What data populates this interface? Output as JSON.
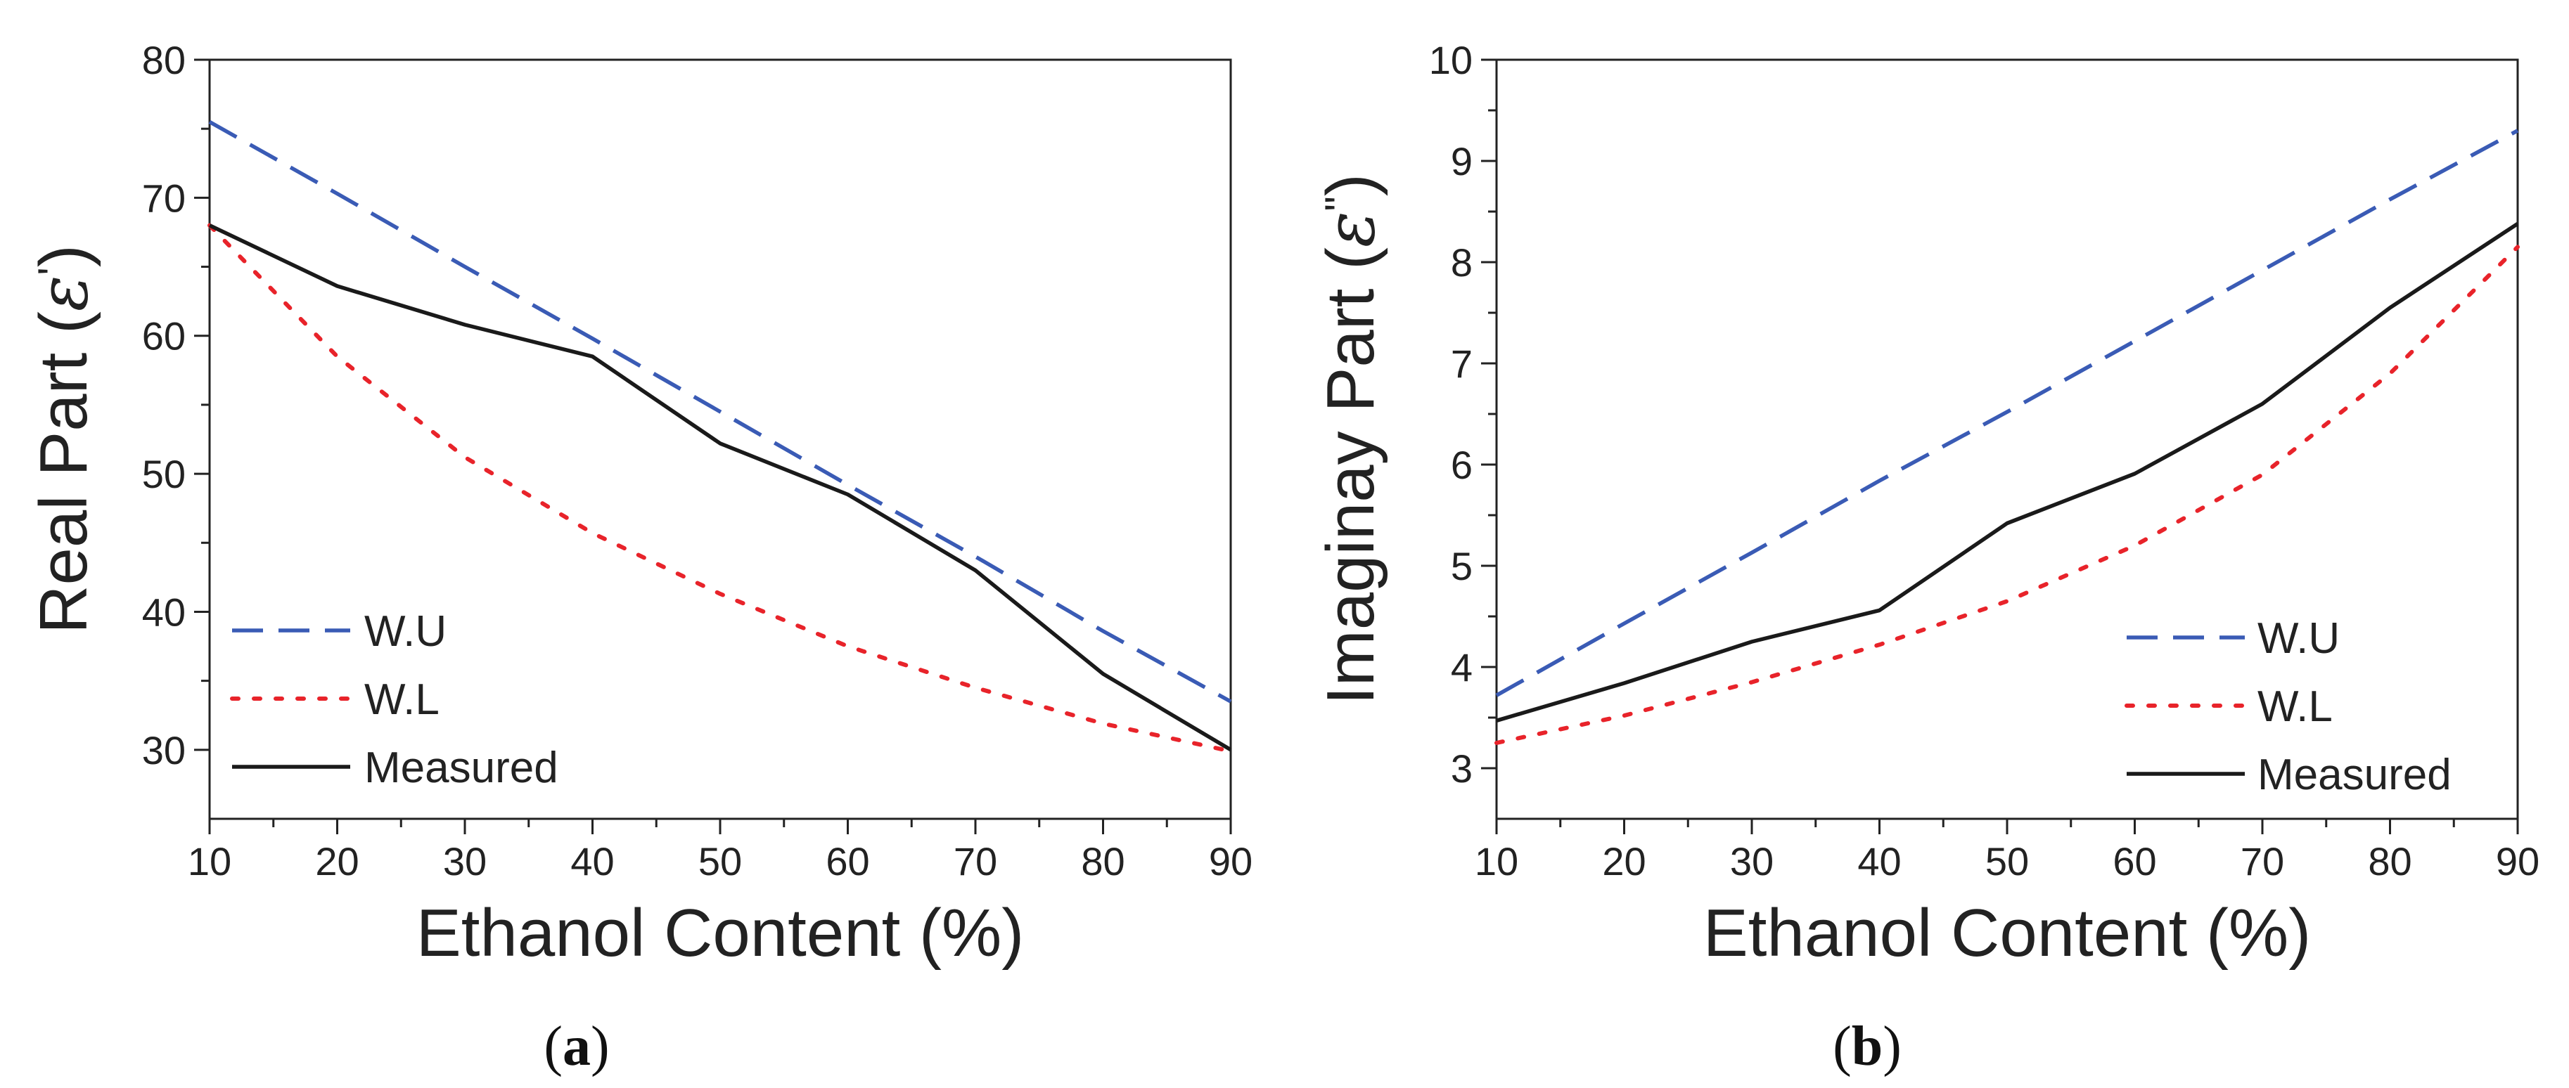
{
  "colors": {
    "wu": "#3a5bb5",
    "wl": "#e8232a",
    "measured": "#1a1a1a",
    "axis": "#222222"
  },
  "chart_data": [
    {
      "type": "line",
      "panel_label": "(a)",
      "panel_parts": [
        "(",
        "a",
        ")"
      ],
      "xlabel": "Ethanol Content (%)",
      "ylabel": "Real Part (ε')",
      "ylabel_parts": [
        "Real Part (",
        "ε",
        "'",
        ")"
      ],
      "xlim": [
        10,
        90
      ],
      "ylim": [
        25,
        80
      ],
      "xticks": [
        10,
        20,
        30,
        40,
        50,
        60,
        70,
        80,
        90
      ],
      "yticks": [
        30,
        40,
        50,
        60,
        70,
        80
      ],
      "legend_position": "bottom-left",
      "series": [
        {
          "name": "W.U",
          "key": "wu",
          "style": "dashed",
          "x": [
            10,
            20,
            30,
            40,
            50,
            60,
            70,
            80,
            90
          ],
          "y": [
            75.5,
            70.3,
            65.0,
            59.8,
            54.5,
            49.2,
            44.0,
            38.6,
            33.5
          ]
        },
        {
          "name": "W.L",
          "key": "wl",
          "style": "dotted",
          "x": [
            10,
            20,
            30,
            40,
            50,
            60,
            70,
            80,
            90
          ],
          "y": [
            68.0,
            58.5,
            51.2,
            45.7,
            41.3,
            37.5,
            34.5,
            31.9,
            29.9
          ]
        },
        {
          "name": "Measured",
          "key": "measured",
          "style": "solid",
          "x": [
            10,
            20,
            30,
            40,
            50,
            60,
            70,
            80,
            90
          ],
          "y": [
            68.0,
            63.6,
            60.8,
            58.5,
            52.2,
            48.5,
            43.0,
            35.5,
            30.0
          ]
        }
      ]
    },
    {
      "type": "line",
      "panel_label": "(b)",
      "panel_parts": [
        "(",
        "b",
        ")"
      ],
      "xlabel": "Ethanol Content (%)",
      "ylabel": "Imaginay Part (ε\")",
      "ylabel_parts": [
        "Imaginay Part (",
        "ε",
        "\"",
        ")"
      ],
      "xlim": [
        10,
        90
      ],
      "ylim": [
        2.5,
        10
      ],
      "xticks": [
        10,
        20,
        30,
        40,
        50,
        60,
        70,
        80,
        90
      ],
      "yticks": [
        3,
        4,
        5,
        6,
        7,
        8,
        9,
        10
      ],
      "legend_position": "bottom-right",
      "series": [
        {
          "name": "W.U",
          "key": "wu",
          "style": "dashed",
          "x": [
            10,
            20,
            30,
            40,
            50,
            60,
            70,
            80,
            90
          ],
          "y": [
            3.72,
            4.43,
            5.13,
            5.84,
            6.52,
            7.22,
            7.92,
            8.62,
            9.3
          ]
        },
        {
          "name": "W.L",
          "key": "wl",
          "style": "dotted",
          "x": [
            10,
            20,
            30,
            40,
            50,
            60,
            70,
            80,
            90
          ],
          "y": [
            3.25,
            3.52,
            3.85,
            4.22,
            4.65,
            5.2,
            5.9,
            6.9,
            8.15
          ]
        },
        {
          "name": "Measured",
          "key": "measured",
          "style": "solid",
          "x": [
            10,
            20,
            30,
            40,
            50,
            60,
            70,
            80,
            90
          ],
          "y": [
            3.47,
            3.84,
            4.25,
            4.56,
            5.42,
            5.91,
            6.6,
            7.55,
            8.38
          ]
        }
      ]
    }
  ]
}
